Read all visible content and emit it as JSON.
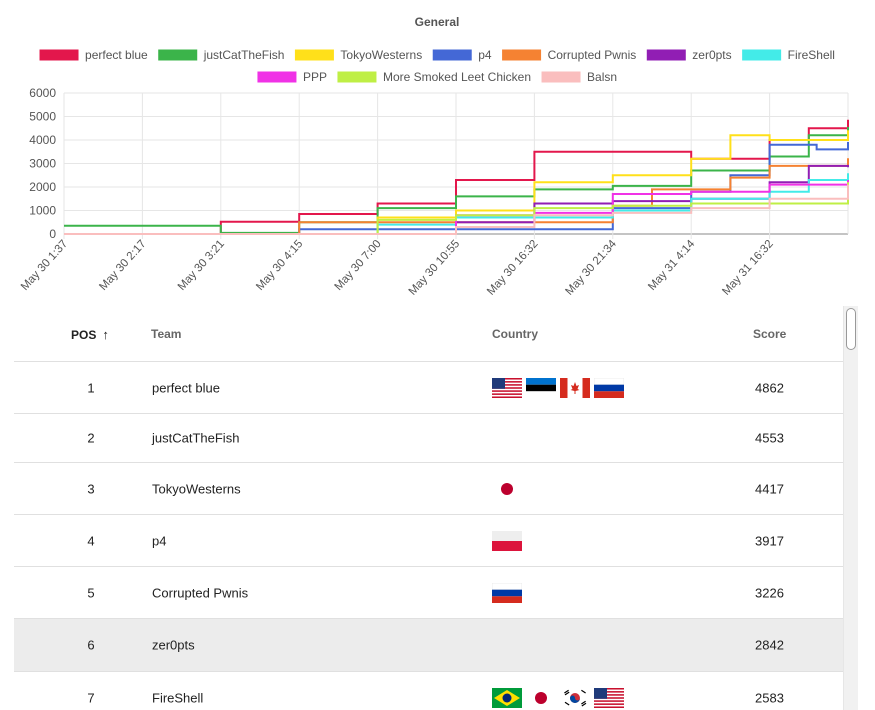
{
  "chart_data": {
    "type": "line",
    "title": "General",
    "ylim": [
      0,
      6000
    ],
    "yticks": [
      0,
      1000,
      2000,
      3000,
      4000,
      5000,
      6000
    ],
    "xtick_labels": [
      "May 30 1:37",
      "May 30 2:17",
      "May 30 3:21",
      "May 30 4:15",
      "May 30 7:00",
      "May 30 10:55",
      "May 30 16:32",
      "May 30 21:34",
      "May 31 4:14",
      "May 31 16:32"
    ],
    "grid": true,
    "legend_position": "top",
    "series": [
      {
        "name": "perfect blue",
        "color": "#e3174c",
        "points": [
          [
            0,
            0
          ],
          [
            2,
            0
          ],
          [
            2,
            520
          ],
          [
            3,
            520
          ],
          [
            3,
            850
          ],
          [
            4,
            850
          ],
          [
            4,
            1300
          ],
          [
            5,
            1300
          ],
          [
            5,
            2300
          ],
          [
            6,
            2300
          ],
          [
            6,
            3500
          ],
          [
            8,
            3200
          ],
          [
            9,
            4000
          ],
          [
            9.5,
            4500
          ],
          [
            10,
            4862
          ]
        ]
      },
      {
        "name": "justCatTheFish",
        "color": "#3bb44a",
        "points": [
          [
            0,
            350
          ],
          [
            2,
            50
          ],
          [
            3,
            50
          ],
          [
            3,
            500
          ],
          [
            4,
            1100
          ],
          [
            5,
            1600
          ],
          [
            6,
            1900
          ],
          [
            7,
            1900
          ],
          [
            7,
            2050
          ],
          [
            8,
            2700
          ],
          [
            9,
            3300
          ],
          [
            9.5,
            4200
          ],
          [
            10,
            4553
          ]
        ]
      },
      {
        "name": "TokyoWesterns",
        "color": "#ffe01a",
        "points": [
          [
            0,
            0
          ],
          [
            1,
            0
          ],
          [
            4,
            0
          ],
          [
            4,
            700
          ],
          [
            5,
            1000
          ],
          [
            6,
            2200
          ],
          [
            7,
            2500
          ],
          [
            8,
            3200
          ],
          [
            8.5,
            4200
          ],
          [
            9,
            4000
          ],
          [
            10,
            4417
          ]
        ]
      },
      {
        "name": "p4",
        "color": "#4468d6",
        "points": [
          [
            0,
            0
          ],
          [
            3,
            0
          ],
          [
            3,
            200
          ],
          [
            5,
            200
          ],
          [
            7,
            200
          ],
          [
            7,
            1100
          ],
          [
            8,
            1800
          ],
          [
            8.5,
            2500
          ],
          [
            9,
            3800
          ],
          [
            9.6,
            3600
          ],
          [
            10,
            3917
          ]
        ]
      },
      {
        "name": "Corrupted Pwnis",
        "color": "#f58232",
        "points": [
          [
            0,
            0
          ],
          [
            3,
            0
          ],
          [
            3,
            500
          ],
          [
            5,
            500
          ],
          [
            7,
            1200
          ],
          [
            7.5,
            1900
          ],
          [
            8.5,
            2400
          ],
          [
            9,
            2900
          ],
          [
            10,
            3226
          ]
        ]
      },
      {
        "name": "zer0pts",
        "color": "#911eb4",
        "points": [
          [
            0,
            0
          ],
          [
            5,
            0
          ],
          [
            5,
            500
          ],
          [
            6,
            1300
          ],
          [
            7,
            1400
          ],
          [
            8,
            1500
          ],
          [
            9,
            2200
          ],
          [
            9.5,
            2900
          ],
          [
            10,
            2842
          ]
        ]
      },
      {
        "name": "FireShell",
        "color": "#43ebe8",
        "points": [
          [
            0,
            0
          ],
          [
            4,
            0
          ],
          [
            4,
            400
          ],
          [
            5,
            700
          ],
          [
            7,
            1000
          ],
          [
            8,
            1500
          ],
          [
            9,
            1800
          ],
          [
            9.5,
            2300
          ],
          [
            10,
            2583
          ]
        ]
      },
      {
        "name": "PPP",
        "color": "#f032e6",
        "points": [
          [
            0,
            0
          ],
          [
            5,
            0
          ],
          [
            5,
            800
          ],
          [
            6,
            900
          ],
          [
            7,
            1700
          ],
          [
            8,
            1800
          ],
          [
            9,
            2100
          ],
          [
            10,
            2300
          ]
        ]
      },
      {
        "name": "More Smoked Leet Chicken",
        "color": "#bfef45",
        "points": [
          [
            0,
            0
          ],
          [
            4,
            0
          ],
          [
            4,
            600
          ],
          [
            5,
            800
          ],
          [
            6,
            1100
          ],
          [
            7,
            1200
          ],
          [
            8,
            1300
          ],
          [
            9,
            1300
          ],
          [
            9.5,
            1300
          ],
          [
            10,
            2200
          ]
        ]
      },
      {
        "name": "Balsn",
        "color": "#fabebe",
        "points": [
          [
            0,
            0
          ],
          [
            5,
            0
          ],
          [
            5,
            300
          ],
          [
            6,
            800
          ],
          [
            7,
            900
          ],
          [
            8,
            1100
          ],
          [
            9,
            1500
          ],
          [
            10,
            2100
          ]
        ]
      }
    ]
  },
  "table": {
    "headers": {
      "pos": "POS",
      "team": "Team",
      "country": "Country",
      "score": "Score"
    },
    "sort_icon": "arrow-up-icon",
    "rows": [
      {
        "pos": "1",
        "team": "perfect blue",
        "score": "4862",
        "flags": [
          "us",
          "ee",
          "ca",
          "ru"
        ]
      },
      {
        "pos": "2",
        "team": "justCatTheFish",
        "score": "4553",
        "flags": []
      },
      {
        "pos": "3",
        "team": "TokyoWesterns",
        "score": "4417",
        "flags": [
          "jp"
        ]
      },
      {
        "pos": "4",
        "team": "p4",
        "score": "3917",
        "flags": [
          "pl"
        ]
      },
      {
        "pos": "5",
        "team": "Corrupted Pwnis",
        "score": "3226",
        "flags": [
          "ru"
        ]
      },
      {
        "pos": "6",
        "team": "zer0pts",
        "score": "2842",
        "flags": [],
        "highlighted": true
      },
      {
        "pos": "7",
        "team": "FireShell",
        "score": "2583",
        "flags": [
          "br",
          "jp",
          "kr",
          "us"
        ]
      }
    ]
  }
}
